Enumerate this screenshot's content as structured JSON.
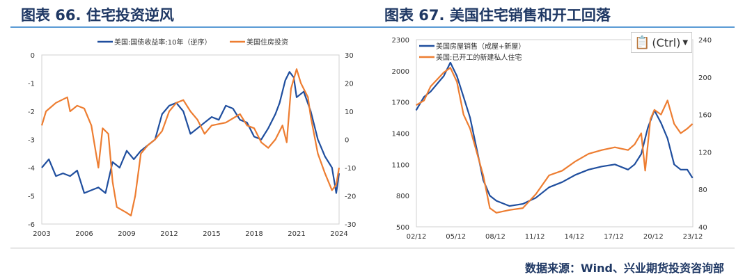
{
  "titles": {
    "left": "图表 66. 住宅投资逆风",
    "right": "图表 67. 美国住宅销售和开工回落"
  },
  "source": "数据来源：Wind、兴业期货投资咨询部",
  "paste": {
    "label": "(Ctrl)",
    "icon": "clipboard-icon"
  },
  "colors": {
    "blue": "#1f4e9e",
    "orange": "#ed7d31",
    "rule": "#5b9bd5"
  },
  "chart_data": [
    {
      "type": "line",
      "title": "图表 66. 住宅投资逆风",
      "x_ticks": [
        "2003",
        "2006",
        "2009",
        "2012",
        "2015",
        "2018",
        "2021",
        "2024"
      ],
      "xlim": [
        2003,
        2024
      ],
      "y_left": {
        "lim": [
          -6,
          0
        ],
        "ticks": [
          "0",
          "-1",
          "-2",
          "-3",
          "-4",
          "-5",
          "-6"
        ]
      },
      "y_right": {
        "lim": [
          -30,
          30
        ],
        "ticks": [
          "30",
          "20",
          "10",
          "0",
          "-10",
          "-20",
          "-30"
        ]
      },
      "series": [
        {
          "name": "美国:国债收益率:10年（逆序）",
          "axis": "left",
          "color": "#1f4e9e",
          "x": [
            2003,
            2003.5,
            2004,
            2004.5,
            2005,
            2005.5,
            2006,
            2006.5,
            2007,
            2007.5,
            2008,
            2008.5,
            2009,
            2009.5,
            2010,
            2010.5,
            2011,
            2011.5,
            2012,
            2012.5,
            2013,
            2013.5,
            2014,
            2014.5,
            2015,
            2015.5,
            2016,
            2016.5,
            2017,
            2017.5,
            2018,
            2018.5,
            2019,
            2019.5,
            2019.8,
            2020.2,
            2020.5,
            2020.8,
            2021,
            2021.5,
            2022,
            2022.5,
            2023,
            2023.5,
            2023.8,
            2024
          ],
          "y": [
            -4,
            -3.7,
            -4.3,
            -4.2,
            -4.3,
            -4.1,
            -4.9,
            -4.8,
            -4.7,
            -4.9,
            -3.8,
            -4,
            -3.4,
            -3.7,
            -3.4,
            -3.2,
            -3,
            -2.1,
            -1.8,
            -1.7,
            -2,
            -2.8,
            -2.6,
            -2.4,
            -2.2,
            -2.3,
            -1.8,
            -1.9,
            -2.3,
            -2.4,
            -2.9,
            -3.0,
            -2.6,
            -2.1,
            -1.7,
            -0.9,
            -0.6,
            -0.8,
            -1.5,
            -1.3,
            -2.0,
            -3.0,
            -3.6,
            -4.0,
            -4.9,
            -4.2
          ]
        },
        {
          "name": "美国住房投资",
          "axis": "right",
          "color": "#ed7d31",
          "x": [
            2003,
            2003.3,
            2004,
            2004.8,
            2005,
            2005.5,
            2006,
            2006.5,
            2007,
            2007.3,
            2007.7,
            2008,
            2008.3,
            2009,
            2009.3,
            2009.6,
            2010,
            2010.5,
            2011,
            2011.5,
            2012,
            2012.5,
            2013,
            2013.5,
            2014,
            2014.5,
            2015,
            2016,
            2017,
            2017.5,
            2018,
            2018.5,
            2019,
            2019.5,
            2020,
            2020.3,
            2020.6,
            2021,
            2021.3,
            2021.8,
            2022,
            2022.5,
            2023,
            2023.5,
            2023.8,
            2024
          ],
          "y": [
            5,
            10,
            13,
            15,
            10,
            12,
            11,
            5,
            -10,
            4,
            2,
            -15,
            -24,
            -26,
            -27,
            -20,
            -5,
            -2,
            0,
            3,
            10,
            13,
            14,
            10,
            7,
            2,
            5,
            6,
            9,
            5,
            4,
            -1,
            -3,
            0,
            5,
            -1,
            18,
            25,
            20,
            15,
            8,
            -5,
            -12,
            -18,
            -16,
            -10
          ]
        }
      ]
    },
    {
      "type": "line",
      "title": "图表 67. 美国住宅销售和开工回落",
      "x_ticks": [
        "02/12",
        "05/12",
        "08/12",
        "11/12",
        "14/12",
        "17/12",
        "20/12",
        "23/12"
      ],
      "xlim": [
        2002.92,
        2023.92
      ],
      "y_left": {
        "lim": [
          500,
          2300
        ],
        "ticks": [
          "2300",
          "2000",
          "1700",
          "1400",
          "1100",
          "800",
          "500"
        ]
      },
      "y_right": {
        "lim": [
          40,
          240
        ],
        "ticks": [
          "240",
          "200",
          "160",
          "120",
          "80",
          "40"
        ]
      },
      "series": [
        {
          "name": "美国房屋销售（成屋+新屋）",
          "axis": "left",
          "color": "#1f4e9e",
          "x": [
            2002.9,
            2003.5,
            2004,
            2005,
            2005.5,
            2006,
            2006.5,
            2007,
            2007.5,
            2008,
            2008.5,
            2009,
            2010,
            2011,
            2012,
            2013,
            2014,
            2015,
            2016,
            2017,
            2018,
            2019,
            2019.5,
            2020,
            2020.5,
            2021,
            2021.5,
            2022,
            2022.5,
            2023,
            2023.5,
            2023.9
          ],
          "y": [
            1620,
            1750,
            1800,
            1950,
            2080,
            1950,
            1750,
            1550,
            1250,
            950,
            800,
            750,
            700,
            720,
            780,
            880,
            930,
            1000,
            1050,
            1080,
            1100,
            1050,
            1100,
            1200,
            1450,
            1620,
            1500,
            1350,
            1100,
            1050,
            1050,
            970
          ]
        },
        {
          "name": "美国:已开工的新建私人住宅",
          "axis": "right",
          "color": "#ed7d31",
          "x": [
            2002.9,
            2003.5,
            2004,
            2005,
            2005.5,
            2006,
            2006.5,
            2007,
            2007.5,
            2008,
            2008.5,
            2009,
            2010,
            2011,
            2012,
            2013,
            2014,
            2015,
            2016,
            2017,
            2018,
            2019,
            2019.5,
            2020,
            2020.3,
            2020.7,
            2021,
            2021.5,
            2022,
            2022.5,
            2023,
            2023.5,
            2023.9
          ],
          "y": [
            170,
            175,
            190,
            205,
            210,
            195,
            160,
            145,
            120,
            95,
            60,
            55,
            58,
            60,
            75,
            95,
            100,
            110,
            118,
            122,
            125,
            122,
            128,
            140,
            100,
            155,
            165,
            160,
            175,
            150,
            140,
            145,
            150
          ]
        }
      ]
    }
  ]
}
